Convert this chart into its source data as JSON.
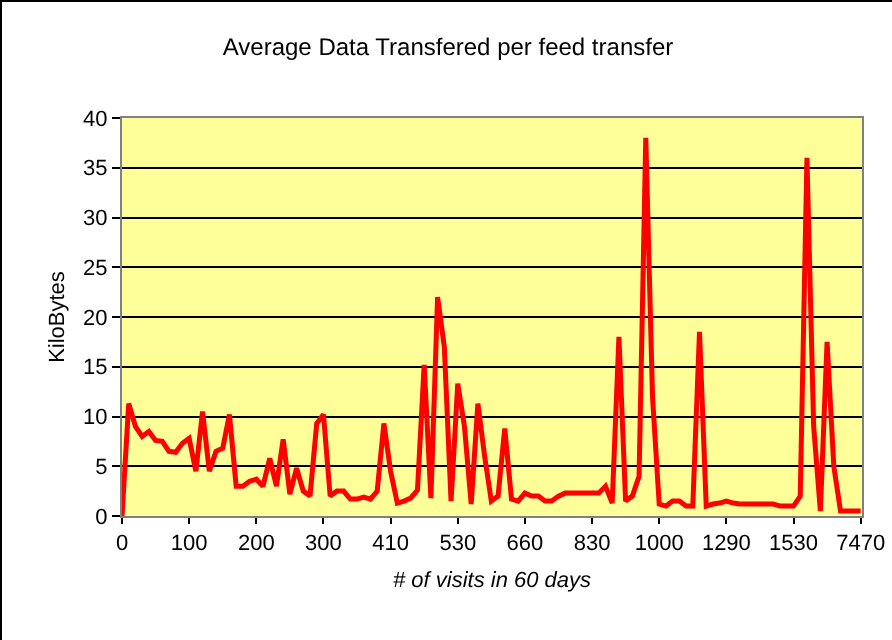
{
  "chart_data": {
    "type": "line",
    "title": "Average Data Transfered per feed transfer",
    "xlabel": "# of visits in 60 days",
    "ylabel": "KiloBytes",
    "categories": [
      "0",
      null,
      null,
      null,
      null,
      null,
      null,
      null,
      null,
      null,
      "100",
      null,
      null,
      null,
      null,
      null,
      null,
      null,
      null,
      null,
      "200",
      null,
      null,
      null,
      null,
      null,
      null,
      null,
      null,
      null,
      "300",
      null,
      null,
      null,
      null,
      null,
      null,
      null,
      null,
      null,
      "410",
      null,
      null,
      null,
      null,
      null,
      null,
      null,
      null,
      null,
      "530",
      null,
      null,
      null,
      null,
      null,
      null,
      null,
      null,
      null,
      "660",
      null,
      null,
      null,
      null,
      null,
      null,
      null,
      null,
      null,
      "830",
      null,
      null,
      null,
      null,
      null,
      null,
      null,
      null,
      null,
      "1000",
      null,
      null,
      null,
      null,
      null,
      null,
      null,
      null,
      null,
      "1290",
      null,
      null,
      null,
      null,
      null,
      null,
      null,
      null,
      null,
      "1530",
      null,
      null,
      null,
      null,
      null,
      null,
      null,
      null,
      null,
      "7470"
    ],
    "series": [
      {
        "color": "#ff0000",
        "values": [
          0,
          11.3,
          9,
          8,
          8.5,
          7.6,
          7.5,
          6.5,
          6.4,
          7.3,
          7.8,
          4.5,
          10.5,
          4.5,
          6.5,
          6.8,
          10.2,
          3,
          3,
          3.5,
          3.7,
          3,
          5.8,
          3,
          7.7,
          2.2,
          4.8,
          2.5,
          2,
          9.3,
          10.2,
          2,
          2.5,
          2.5,
          1.7,
          1.7,
          1.9,
          1.7,
          2.5,
          9.3,
          4.5,
          1.3,
          1.5,
          1.8,
          2.6,
          15.2,
          1.8,
          22,
          17,
          1.5,
          13.3,
          9,
          1.2,
          11.3,
          6,
          1.5,
          2,
          8.8,
          1.7,
          1.5,
          2.3,
          2,
          2,
          1.5,
          1.5,
          2,
          2.3,
          2.3,
          2.3,
          2.3,
          2.3,
          2.3,
          3,
          1.3,
          18,
          1.5,
          2,
          4,
          38,
          12,
          1.2,
          1,
          1.5,
          1.5,
          1,
          1,
          18.5,
          1,
          1.2,
          1.3,
          1.5,
          1.3,
          1.2,
          1.2,
          1.2,
          1.2,
          1.2,
          1.2,
          1,
          1,
          1,
          2,
          36,
          9,
          0.5,
          17.5,
          5,
          0.5,
          0.5,
          0.5,
          0.5
        ]
      }
    ],
    "ylim": [
      0,
      40
    ],
    "yticks": [
      0,
      5,
      10,
      15,
      20,
      25,
      30,
      35,
      40
    ],
    "grid": "y",
    "marker": "none",
    "line_style": "solid"
  }
}
